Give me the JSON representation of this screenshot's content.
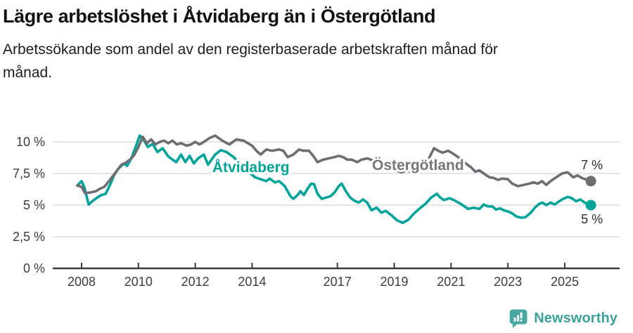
{
  "header": {
    "title": "Lägre arbetslöshet i Åtvidaberg än i Östergötland",
    "subtitle_lines": [
      "Arbetssökande som andel av den registerbaserade arbetskraften månad för",
      "månad."
    ]
  },
  "footer": {
    "brand": "Newsworthy",
    "logo_icon": "speech-bubble-bar-chart"
  },
  "colors": {
    "atvidaberg_line": "#00a49a",
    "ostergotland_line": "#6e6e72",
    "ostergotland_label": "#77777b",
    "grid": "#d8d8d8",
    "axis": "#3b3b3d",
    "tick_label": "#3d3d3d",
    "end_label": "#2e2e2e",
    "brand": "#3ba19b"
  },
  "chart_data": {
    "type": "line",
    "title": "Lägre arbetslöshet i Åtvidaberg än i Östergötland",
    "subtitle": "Arbetssökande som andel av den registerbaserade arbetskraften månad för månad.",
    "unit": "%",
    "x_ticks": [
      2008,
      2010,
      2012,
      2014,
      2017,
      2019,
      2021,
      2023,
      2025
    ],
    "y_ticks": [
      {
        "value": 0,
        "label": "0 %"
      },
      {
        "value": 2.5,
        "label": "2,5 %"
      },
      {
        "value": 5,
        "label": "5 %"
      },
      {
        "value": 7.5,
        "label": "7,5 %"
      },
      {
        "value": 10,
        "label": "10 %"
      }
    ],
    "xlim": [
      2007.85,
      2026.9
    ],
    "ylim": [
      0,
      11.2
    ],
    "grid": "horizontal",
    "legend": "inline-labels",
    "series": [
      {
        "name": "Åtvidaberg",
        "color": "#00a49a",
        "label_color": "#00a49a",
        "label_anchor": [
          2012.6,
          7.6
        ],
        "end_label": "5 %",
        "end_label_side": "below",
        "points": [
          [
            2007.85,
            6.55
          ],
          [
            2008.0,
            6.9
          ],
          [
            2008.1,
            6.4
          ],
          [
            2008.25,
            5.05
          ],
          [
            2008.4,
            5.35
          ],
          [
            2008.55,
            5.6
          ],
          [
            2008.7,
            5.8
          ],
          [
            2008.85,
            5.9
          ],
          [
            2009.0,
            6.6
          ],
          [
            2009.15,
            7.4
          ],
          [
            2009.3,
            7.9
          ],
          [
            2009.5,
            8.3
          ],
          [
            2009.6,
            8.1
          ],
          [
            2009.75,
            8.7
          ],
          [
            2009.9,
            9.6
          ],
          [
            2010.05,
            10.5
          ],
          [
            2010.2,
            10.1
          ],
          [
            2010.33,
            9.6
          ],
          [
            2010.5,
            9.85
          ],
          [
            2010.67,
            9.2
          ],
          [
            2010.85,
            9.5
          ],
          [
            2011.05,
            8.85
          ],
          [
            2011.2,
            8.6
          ],
          [
            2011.33,
            8.4
          ],
          [
            2011.5,
            9.0
          ],
          [
            2011.65,
            8.4
          ],
          [
            2011.8,
            8.9
          ],
          [
            2011.95,
            8.3
          ],
          [
            2012.1,
            8.7
          ],
          [
            2012.3,
            9.0
          ],
          [
            2012.45,
            8.2
          ],
          [
            2012.7,
            9.0
          ],
          [
            2012.9,
            9.35
          ],
          [
            2013.1,
            9.2
          ],
          [
            2013.35,
            8.8
          ],
          [
            2013.6,
            8.2
          ],
          [
            2013.85,
            7.7
          ],
          [
            2014.1,
            7.2
          ],
          [
            2014.3,
            7.05
          ],
          [
            2014.5,
            6.9
          ],
          [
            2014.62,
            7.1
          ],
          [
            2014.8,
            6.8
          ],
          [
            2014.95,
            6.9
          ],
          [
            2015.15,
            6.5
          ],
          [
            2015.35,
            5.7
          ],
          [
            2015.45,
            5.5
          ],
          [
            2015.6,
            5.8
          ],
          [
            2015.7,
            6.1
          ],
          [
            2015.82,
            5.8
          ],
          [
            2015.95,
            6.3
          ],
          [
            2016.08,
            6.7
          ],
          [
            2016.18,
            6.65
          ],
          [
            2016.3,
            5.9
          ],
          [
            2016.45,
            5.5
          ],
          [
            2016.6,
            5.6
          ],
          [
            2016.75,
            5.7
          ],
          [
            2016.9,
            6.0
          ],
          [
            2017.05,
            6.5
          ],
          [
            2017.15,
            6.7
          ],
          [
            2017.3,
            6.1
          ],
          [
            2017.45,
            5.6
          ],
          [
            2017.6,
            5.35
          ],
          [
            2017.75,
            5.2
          ],
          [
            2017.9,
            5.45
          ],
          [
            2018.05,
            5.2
          ],
          [
            2018.2,
            4.6
          ],
          [
            2018.38,
            4.8
          ],
          [
            2018.55,
            4.4
          ],
          [
            2018.7,
            4.55
          ],
          [
            2018.9,
            4.2
          ],
          [
            2019.1,
            3.8
          ],
          [
            2019.3,
            3.6
          ],
          [
            2019.5,
            3.85
          ],
          [
            2019.7,
            4.35
          ],
          [
            2019.9,
            4.75
          ],
          [
            2020.1,
            5.1
          ],
          [
            2020.3,
            5.6
          ],
          [
            2020.5,
            5.9
          ],
          [
            2020.62,
            5.6
          ],
          [
            2020.75,
            5.4
          ],
          [
            2020.95,
            5.55
          ],
          [
            2021.1,
            5.4
          ],
          [
            2021.3,
            5.15
          ],
          [
            2021.6,
            4.7
          ],
          [
            2021.8,
            4.8
          ],
          [
            2022.0,
            4.7
          ],
          [
            2022.15,
            5.05
          ],
          [
            2022.3,
            4.9
          ],
          [
            2022.45,
            4.9
          ],
          [
            2022.58,
            4.65
          ],
          [
            2022.72,
            4.75
          ],
          [
            2022.85,
            4.6
          ],
          [
            2023.0,
            4.5
          ],
          [
            2023.15,
            4.35
          ],
          [
            2023.3,
            4.1
          ],
          [
            2023.48,
            4.0
          ],
          [
            2023.62,
            4.05
          ],
          [
            2023.8,
            4.4
          ],
          [
            2023.95,
            4.8
          ],
          [
            2024.1,
            5.1
          ],
          [
            2024.22,
            5.2
          ],
          [
            2024.35,
            5.0
          ],
          [
            2024.5,
            5.2
          ],
          [
            2024.65,
            5.05
          ],
          [
            2024.8,
            5.3
          ],
          [
            2024.95,
            5.5
          ],
          [
            2025.1,
            5.65
          ],
          [
            2025.25,
            5.55
          ],
          [
            2025.4,
            5.3
          ],
          [
            2025.55,
            5.45
          ],
          [
            2025.7,
            5.2
          ],
          [
            2025.92,
            5.0
          ]
        ]
      },
      {
        "name": "Östergötland",
        "color": "#6e6e72",
        "label_color": "#77777b",
        "label_anchor": [
          2018.22,
          7.78
        ],
        "end_label": "7 %",
        "end_label_side": "above",
        "points": [
          [
            2007.85,
            6.55
          ],
          [
            2008.0,
            6.45
          ],
          [
            2008.12,
            5.95
          ],
          [
            2008.3,
            6.0
          ],
          [
            2008.5,
            6.1
          ],
          [
            2008.65,
            6.3
          ],
          [
            2008.8,
            6.45
          ],
          [
            2009.0,
            7.0
          ],
          [
            2009.2,
            7.6
          ],
          [
            2009.4,
            8.2
          ],
          [
            2009.55,
            8.35
          ],
          [
            2009.7,
            8.6
          ],
          [
            2009.85,
            8.95
          ],
          [
            2010.0,
            9.6
          ],
          [
            2010.15,
            10.4
          ],
          [
            2010.3,
            9.9
          ],
          [
            2010.45,
            10.2
          ],
          [
            2010.6,
            9.8
          ],
          [
            2010.75,
            10.0
          ],
          [
            2010.9,
            10.1
          ],
          [
            2011.05,
            9.9
          ],
          [
            2011.2,
            10.1
          ],
          [
            2011.35,
            9.8
          ],
          [
            2011.5,
            9.9
          ],
          [
            2011.7,
            9.7
          ],
          [
            2011.85,
            9.8
          ],
          [
            2012.0,
            10.0
          ],
          [
            2012.15,
            9.8
          ],
          [
            2012.3,
            10.0
          ],
          [
            2012.5,
            10.3
          ],
          [
            2012.7,
            10.5
          ],
          [
            2012.95,
            10.1
          ],
          [
            2013.2,
            9.8
          ],
          [
            2013.45,
            10.2
          ],
          [
            2013.7,
            10.1
          ],
          [
            2013.85,
            9.9
          ],
          [
            2014.0,
            9.7
          ],
          [
            2014.15,
            9.3
          ],
          [
            2014.3,
            9.0
          ],
          [
            2014.5,
            9.4
          ],
          [
            2014.7,
            9.3
          ],
          [
            2014.95,
            9.4
          ],
          [
            2015.1,
            9.3
          ],
          [
            2015.25,
            8.8
          ],
          [
            2015.45,
            9.0
          ],
          [
            2015.65,
            9.4
          ],
          [
            2015.8,
            9.3
          ],
          [
            2016.0,
            9.3
          ],
          [
            2016.15,
            8.9
          ],
          [
            2016.3,
            8.4
          ],
          [
            2016.5,
            8.6
          ],
          [
            2016.7,
            8.7
          ],
          [
            2016.9,
            8.8
          ],
          [
            2017.05,
            8.9
          ],
          [
            2017.2,
            8.8
          ],
          [
            2017.35,
            8.6
          ],
          [
            2017.5,
            8.6
          ],
          [
            2017.7,
            8.4
          ],
          [
            2017.85,
            8.6
          ],
          [
            2018.05,
            8.7
          ],
          [
            2018.3,
            8.5
          ],
          [
            2018.55,
            8.3
          ],
          [
            2018.8,
            8.05
          ],
          [
            2019.0,
            7.8
          ],
          [
            2019.25,
            7.6
          ],
          [
            2019.45,
            7.75
          ],
          [
            2019.6,
            7.6
          ],
          [
            2019.8,
            7.7
          ],
          [
            2020.0,
            7.9
          ],
          [
            2020.2,
            8.6
          ],
          [
            2020.4,
            9.5
          ],
          [
            2020.55,
            9.3
          ],
          [
            2020.7,
            9.15
          ],
          [
            2020.9,
            9.3
          ],
          [
            2021.05,
            9.1
          ],
          [
            2021.25,
            8.8
          ],
          [
            2021.45,
            8.4
          ],
          [
            2021.7,
            8.0
          ],
          [
            2021.85,
            7.65
          ],
          [
            2022.0,
            7.75
          ],
          [
            2022.15,
            7.5
          ],
          [
            2022.35,
            7.2
          ],
          [
            2022.5,
            7.15
          ],
          [
            2022.65,
            7.0
          ],
          [
            2022.8,
            7.1
          ],
          [
            2023.0,
            7.05
          ],
          [
            2023.15,
            6.7
          ],
          [
            2023.35,
            6.5
          ],
          [
            2023.55,
            6.6
          ],
          [
            2023.75,
            6.7
          ],
          [
            2023.9,
            6.8
          ],
          [
            2024.05,
            6.7
          ],
          [
            2024.2,
            6.9
          ],
          [
            2024.35,
            6.6
          ],
          [
            2024.5,
            6.9
          ],
          [
            2024.7,
            7.2
          ],
          [
            2024.9,
            7.5
          ],
          [
            2025.1,
            7.6
          ],
          [
            2025.3,
            7.2
          ],
          [
            2025.45,
            7.35
          ],
          [
            2025.6,
            7.15
          ],
          [
            2025.92,
            6.9
          ]
        ]
      }
    ]
  }
}
